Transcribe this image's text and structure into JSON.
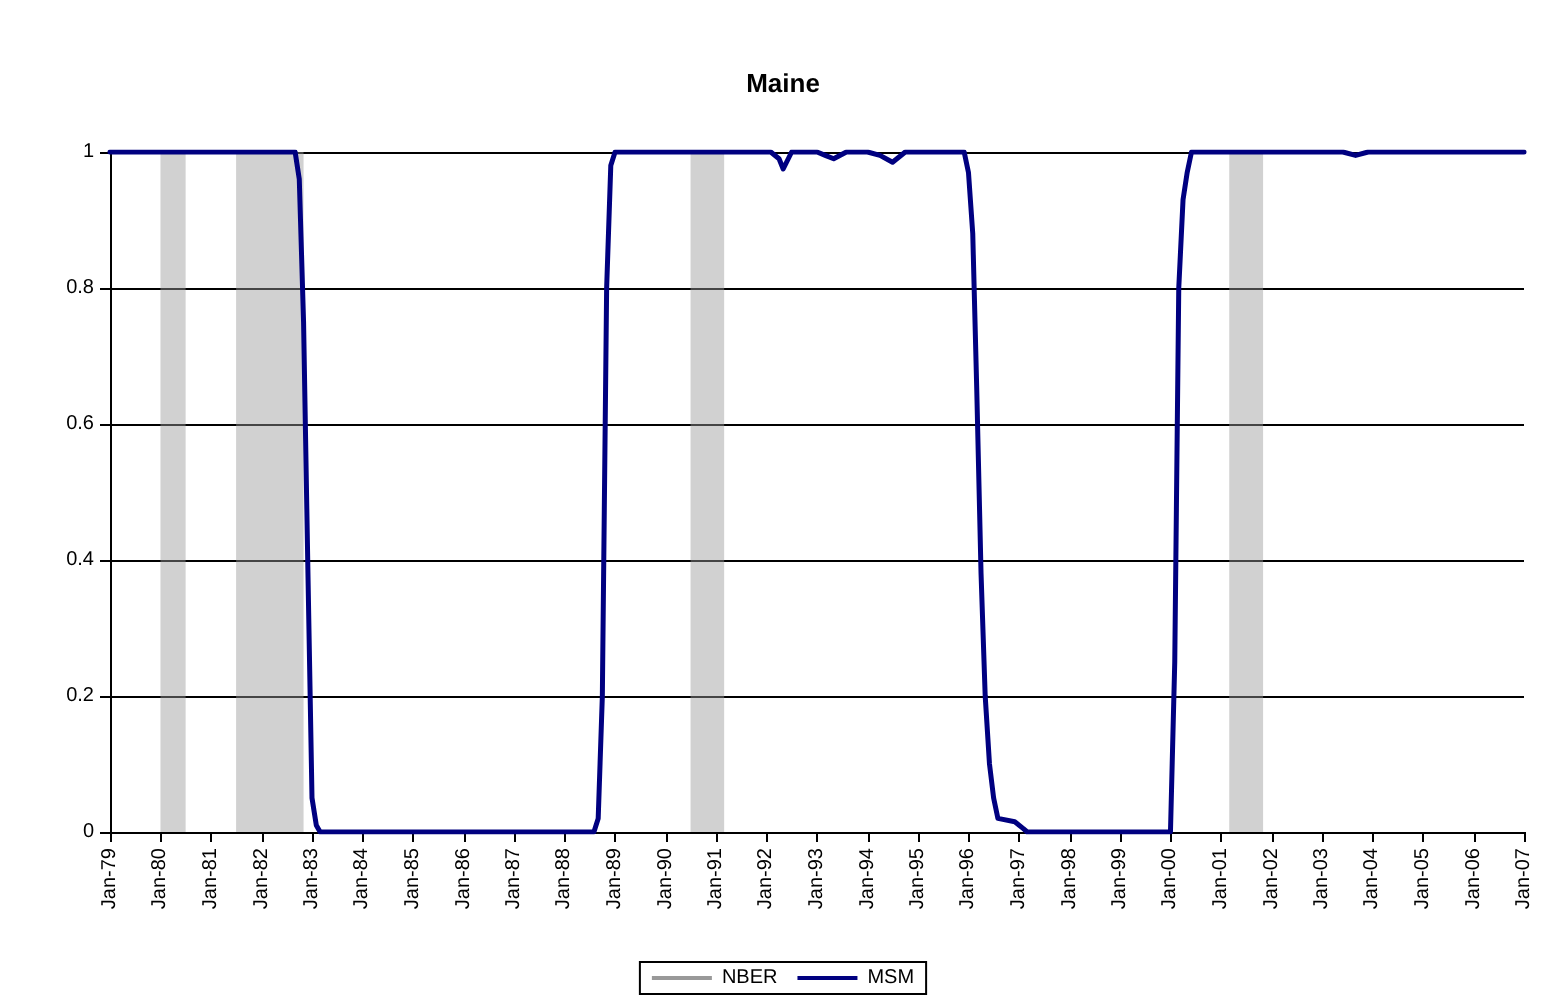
{
  "chart_data": {
    "type": "line",
    "title": "Maine",
    "xlim": [
      "1979-01",
      "2007-01"
    ],
    "xticks": [
      {
        "value": "1979-01",
        "label": "Jan-79"
      },
      {
        "value": "1980-01",
        "label": "Jan-80"
      },
      {
        "value": "1981-01",
        "label": "Jan-81"
      },
      {
        "value": "1982-01",
        "label": "Jan-82"
      },
      {
        "value": "1983-01",
        "label": "Jan-83"
      },
      {
        "value": "1984-01",
        "label": "Jan-84"
      },
      {
        "value": "1985-01",
        "label": "Jan-85"
      },
      {
        "value": "1986-01",
        "label": "Jan-86"
      },
      {
        "value": "1987-01",
        "label": "Jan-87"
      },
      {
        "value": "1988-01",
        "label": "Jan-88"
      },
      {
        "value": "1989-01",
        "label": "Jan-89"
      },
      {
        "value": "1990-01",
        "label": "Jan-90"
      },
      {
        "value": "1991-01",
        "label": "Jan-91"
      },
      {
        "value": "1992-01",
        "label": "Jan-92"
      },
      {
        "value": "1993-01",
        "label": "Jan-93"
      },
      {
        "value": "1994-01",
        "label": "Jan-94"
      },
      {
        "value": "1995-01",
        "label": "Jan-95"
      },
      {
        "value": "1996-01",
        "label": "Jan-96"
      },
      {
        "value": "1997-01",
        "label": "Jan-97"
      },
      {
        "value": "1998-01",
        "label": "Jan-98"
      },
      {
        "value": "1999-01",
        "label": "Jan-99"
      },
      {
        "value": "2000-01",
        "label": "Jan-00"
      },
      {
        "value": "2001-01",
        "label": "Jan-01"
      },
      {
        "value": "2002-01",
        "label": "Jan-02"
      },
      {
        "value": "2003-01",
        "label": "Jan-03"
      },
      {
        "value": "2004-01",
        "label": "Jan-04"
      },
      {
        "value": "2005-01",
        "label": "Jan-05"
      },
      {
        "value": "2006-01",
        "label": "Jan-06"
      },
      {
        "value": "2007-01",
        "label": "Jan-07"
      }
    ],
    "ylim": [
      0,
      1
    ],
    "yticks": [
      0,
      0.2,
      0.4,
      0.6,
      0.8,
      1
    ],
    "grid": "y",
    "legend": "bottom",
    "marker": "none",
    "line_style": "solid",
    "series": [
      {
        "name": "MSM",
        "color": "#000080",
        "x": [
          "1979-01",
          "1982-09",
          "1982-10",
          "1982-11",
          "1982-12",
          "1983-01",
          "1983-02",
          "1983-03",
          "1988-08",
          "1988-09",
          "1988-10",
          "1988-11",
          "1988-12",
          "1989-01",
          "1992-02",
          "1992-04",
          "1992-05",
          "1992-07",
          "1993-01",
          "1993-03",
          "1993-05",
          "1993-08",
          "1994-01",
          "1994-04",
          "1994-07",
          "1994-10",
          "1995-02",
          "1995-12",
          "1996-01",
          "1996-02",
          "1996-03",
          "1996-04",
          "1996-05",
          "1996-06",
          "1996-07",
          "1996-08",
          "1996-12",
          "1997-02",
          "1997-03",
          "2000-01",
          "2000-02",
          "2000-03",
          "2000-04",
          "2000-05",
          "2000-06",
          "2003-06",
          "2003-09",
          "2003-12",
          "2007-01"
        ],
        "values": [
          1,
          1,
          0.96,
          0.75,
          0.4,
          0.05,
          0.01,
          0,
          0,
          0.02,
          0.2,
          0.8,
          0.98,
          1,
          1,
          0.99,
          0.975,
          1,
          1,
          0.995,
          0.99,
          1,
          1,
          0.995,
          0.985,
          1,
          1,
          1,
          0.97,
          0.88,
          0.65,
          0.38,
          0.2,
          0.1,
          0.05,
          0.02,
          0.015,
          0.005,
          0,
          0,
          0.25,
          0.8,
          0.93,
          0.97,
          1,
          1,
          0.995,
          1,
          1
        ]
      }
    ],
    "bands": [
      {
        "axis": "x",
        "from": "1980-01",
        "to": "1980-07",
        "label": "NBER",
        "color": "#999999"
      },
      {
        "axis": "x",
        "from": "1981-07",
        "to": "1982-11",
        "color": "#999999"
      },
      {
        "axis": "x",
        "from": "1990-07",
        "to": "1991-03",
        "color": "#999999"
      },
      {
        "axis": "x",
        "from": "2001-03",
        "to": "2001-11",
        "color": "#999999"
      }
    ]
  }
}
